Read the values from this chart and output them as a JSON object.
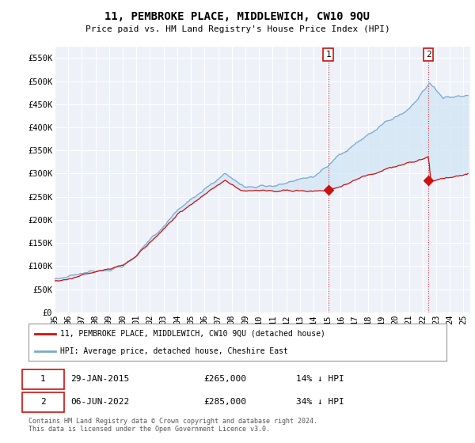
{
  "title": "11, PEMBROKE PLACE, MIDDLEWICH, CW10 9QU",
  "subtitle": "Price paid vs. HM Land Registry's House Price Index (HPI)",
  "ylabel_ticks": [
    "£0",
    "£50K",
    "£100K",
    "£150K",
    "£200K",
    "£250K",
    "£300K",
    "£350K",
    "£400K",
    "£450K",
    "£500K",
    "£550K"
  ],
  "ylabel_values": [
    0,
    50000,
    100000,
    150000,
    200000,
    250000,
    300000,
    350000,
    400000,
    450000,
    500000,
    550000
  ],
  "ylim": [
    0,
    575000
  ],
  "xlim_start": 1995.0,
  "xlim_end": 2025.5,
  "bg_color": "#eef2f8",
  "grid_color": "#ffffff",
  "hpi_color": "#7aaad0",
  "hpi_fill_color": "#d0e4f5",
  "price_color": "#cc1111",
  "sale1_x": 2015.08,
  "sale1_y": 265000,
  "sale2_x": 2022.44,
  "sale2_y": 285000,
  "legend_label1": "11, PEMBROKE PLACE, MIDDLEWICH, CW10 9QU (detached house)",
  "legend_label2": "HPI: Average price, detached house, Cheshire East",
  "annotation1_label": "1",
  "annotation2_label": "2",
  "footnote": "Contains HM Land Registry data © Crown copyright and database right 2024.\nThis data is licensed under the Open Government Licence v3.0.",
  "xtick_years": [
    1995,
    1996,
    1997,
    1998,
    1999,
    2000,
    2001,
    2002,
    2003,
    2004,
    2005,
    2006,
    2007,
    2008,
    2009,
    2010,
    2011,
    2012,
    2013,
    2014,
    2015,
    2016,
    2017,
    2018,
    2019,
    2020,
    2021,
    2022,
    2023,
    2024,
    2025
  ]
}
